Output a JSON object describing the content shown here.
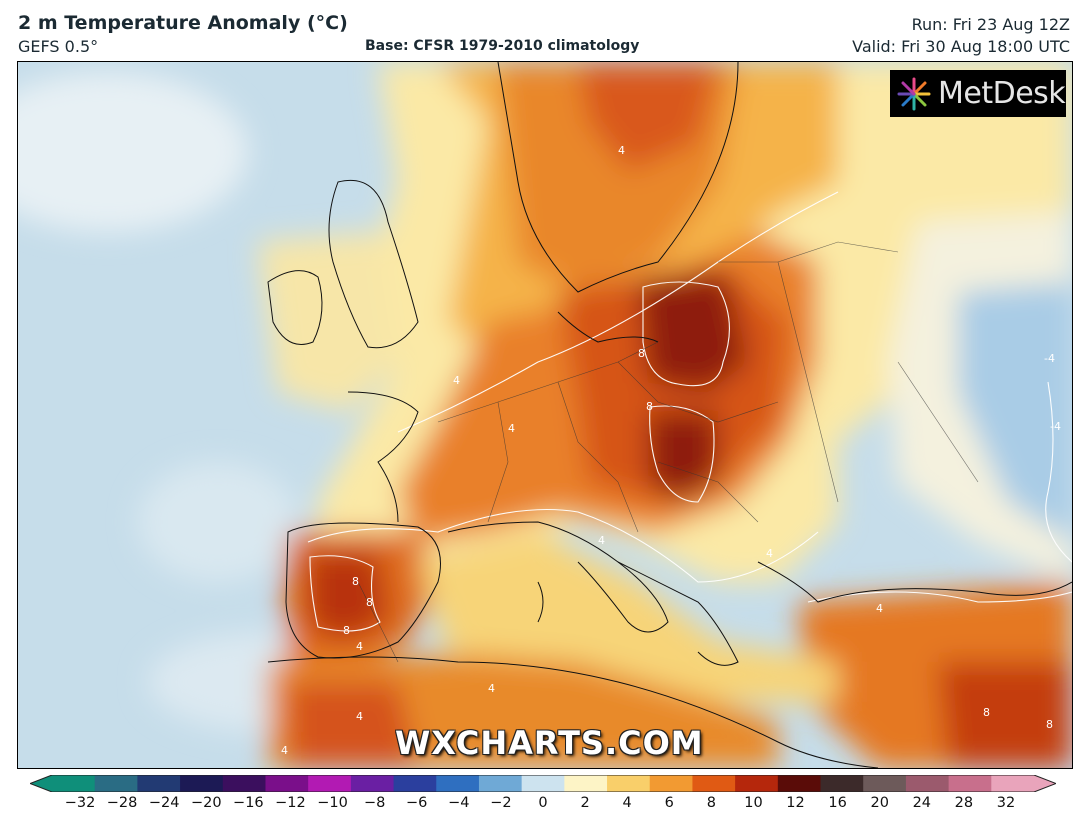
{
  "header": {
    "title": "2 m Temperature Anomaly (°C)",
    "model": "GEFS 0.5°",
    "base": "Base: CFSR 1979-2010 climatology",
    "run": "Run: Fri 23 Aug 12Z",
    "valid": "Valid: Fri 30 Aug 18:00 UTC"
  },
  "map": {
    "region": "Europe",
    "logo_text": "MetDesk",
    "watermark": "WXCHARTS.COM",
    "contour_labels": [
      "4",
      "8",
      "-4"
    ]
  },
  "colorbar": {
    "ticks": [
      "−32",
      "−28",
      "−24",
      "−20",
      "−16",
      "−12",
      "−10",
      "−8",
      "−6",
      "−4",
      "−2",
      "0",
      "2",
      "4",
      "6",
      "8",
      "10",
      "12",
      "16",
      "20",
      "24",
      "28",
      "32"
    ],
    "colors": [
      "#0f8f7a",
      "#2a6c84",
      "#223a73",
      "#1c1a55",
      "#3b0f5e",
      "#7a0f8a",
      "#b21ab3",
      "#6a1fa3",
      "#2b3f9e",
      "#2f6fc0",
      "#6fa9d6",
      "#cde3ef",
      "#fdf4c6",
      "#f9cf6a",
      "#f29a32",
      "#e05a14",
      "#b5270c",
      "#5a0c08",
      "#3c2a2a",
      "#6d5a5a",
      "#9b5a6d",
      "#c86f8c",
      "#e9a4bb"
    ]
  }
}
